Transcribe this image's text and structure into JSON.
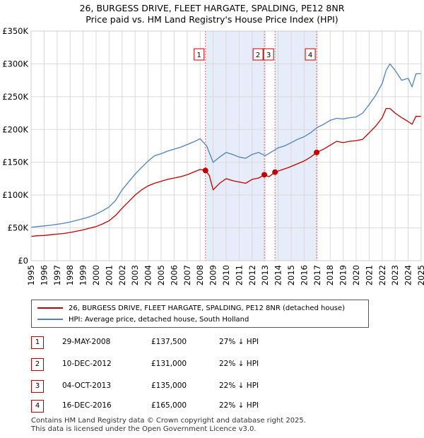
{
  "title_line1": "26, BURGESS DRIVE, FLEET HARGATE, SPALDING, PE12 8NR",
  "title_line2": "Price paid vs. HM Land Registry's House Price Index (HPI)",
  "colors": {
    "price_paid": "#c00000",
    "hpi": "#4f81bd",
    "shade": "#dde6f7",
    "vline": "#e06060"
  },
  "legend": {
    "price_paid_label": "26, BURGESS DRIVE, FLEET HARGATE, SPALDING, PE12 8NR (detached house)",
    "hpi_label": "HPI: Average price, detached house, South Holland"
  },
  "sales": [
    {
      "num": "1",
      "date": "29-MAY-2008",
      "price": "£137,500",
      "hpi": "27% ↓ HPI"
    },
    {
      "num": "2",
      "date": "10-DEC-2012",
      "price": "£131,000",
      "hpi": "22% ↓ HPI"
    },
    {
      "num": "3",
      "date": "04-OCT-2013",
      "price": "£135,000",
      "hpi": "22% ↓ HPI"
    },
    {
      "num": "4",
      "date": "16-DEC-2016",
      "price": "£165,000",
      "hpi": "22% ↓ HPI"
    }
  ],
  "footer_line1": "Contains HM Land Registry data © Crown copyright and database right 2025.",
  "footer_line2": "This data is licensed under the Open Government Licence v3.0.",
  "chart_data": {
    "type": "line",
    "xlim": [
      1995,
      2025
    ],
    "ylim": [
      0,
      350000
    ],
    "y_ticks": [
      0,
      50000,
      100000,
      150000,
      200000,
      250000,
      300000,
      350000
    ],
    "y_tick_labels": [
      "£0",
      "£50K",
      "£100K",
      "£150K",
      "£200K",
      "£250K",
      "£300K",
      "£350K"
    ],
    "x_ticks": [
      1995,
      1996,
      1997,
      1998,
      1999,
      2000,
      2001,
      2002,
      2003,
      2004,
      2005,
      2006,
      2007,
      2008,
      2009,
      2010,
      2011,
      2012,
      2013,
      2014,
      2015,
      2016,
      2017,
      2018,
      2019,
      2020,
      2021,
      2022,
      2023,
      2024,
      2025
    ],
    "shaded_ranges": [
      [
        2008.41,
        2012.94
      ],
      [
        2013.76,
        2016.96
      ]
    ],
    "sale_markers": [
      {
        "label": "1",
        "x": 2008.41,
        "y": 137500
      },
      {
        "label": "2",
        "x": 2012.94,
        "y": 131000
      },
      {
        "label": "3",
        "x": 2013.76,
        "y": 135000
      },
      {
        "label": "4",
        "x": 2016.96,
        "y": 165000
      }
    ],
    "series": [
      {
        "name": "HPI: Average price, detached house, South Holland",
        "x": [
          1995,
          1995.5,
          1996,
          1996.5,
          1997,
          1997.5,
          1998,
          1998.5,
          1999,
          1999.5,
          2000,
          2000.5,
          2001,
          2001.5,
          2002,
          2002.5,
          2003,
          2003.5,
          2004,
          2004.5,
          2005,
          2005.5,
          2006,
          2006.5,
          2007,
          2007.5,
          2008,
          2008.5,
          2009,
          2009.5,
          2010,
          2010.5,
          2011,
          2011.5,
          2012,
          2012.5,
          2013,
          2013.5,
          2014,
          2014.5,
          2015,
          2015.5,
          2016,
          2016.5,
          2017,
          2017.5,
          2018,
          2018.5,
          2019,
          2019.5,
          2020,
          2020.5,
          2021,
          2021.5,
          2022,
          2022.3,
          2022.6,
          2023,
          2023.5,
          2024,
          2024.3,
          2024.6,
          2025
        ],
        "y": [
          51000,
          52000,
          53000,
          54000,
          55500,
          57000,
          59000,
          61500,
          64000,
          67000,
          71000,
          76000,
          82000,
          92000,
          108000,
          120000,
          132000,
          142000,
          152000,
          160000,
          163000,
          167000,
          170000,
          173000,
          177000,
          181000,
          186000,
          175000,
          150000,
          158000,
          165000,
          162000,
          158000,
          156000,
          162000,
          165000,
          160000,
          166000,
          172000,
          175000,
          180000,
          185000,
          189000,
          195000,
          203000,
          208000,
          214000,
          217000,
          216000,
          218000,
          219000,
          225000,
          238000,
          252000,
          270000,
          290000,
          300000,
          290000,
          275000,
          278000,
          265000,
          285000,
          285000
        ]
      },
      {
        "name": "26, BURGESS DRIVE, FLEET HARGATE, SPALDING, PE12 8NR (detached house)",
        "x": [
          1995,
          1995.5,
          1996,
          1996.5,
          1997,
          1997.5,
          1998,
          1998.5,
          1999,
          1999.5,
          2000,
          2000.5,
          2001,
          2001.5,
          2002,
          2002.5,
          2003,
          2003.5,
          2004,
          2004.5,
          2005,
          2005.5,
          2006,
          2006.5,
          2007,
          2007.5,
          2008,
          2008.41,
          2008.7,
          2009,
          2009.5,
          2010,
          2010.5,
          2011,
          2011.5,
          2012,
          2012.5,
          2012.94,
          2013.3,
          2013.76,
          2014.2,
          2014.8,
          2015.4,
          2016,
          2016.5,
          2016.96,
          2017.5,
          2018,
          2018.5,
          2019,
          2019.5,
          2020,
          2020.5,
          2021,
          2021.5,
          2022,
          2022.3,
          2022.6,
          2023,
          2023.5,
          2024,
          2024.3,
          2024.6,
          2025
        ],
        "y": [
          37000,
          38000,
          38500,
          39500,
          40500,
          41500,
          43000,
          45000,
          47000,
          49500,
          52000,
          56000,
          61000,
          69000,
          80000,
          90000,
          100000,
          108000,
          114000,
          118000,
          121000,
          124000,
          126000,
          128000,
          131000,
          135000,
          139000,
          137500,
          130000,
          108000,
          118000,
          125000,
          122000,
          120000,
          118000,
          124000,
          126000,
          131000,
          128000,
          135000,
          138000,
          142000,
          147000,
          152000,
          158000,
          165000,
          170000,
          176000,
          182000,
          180000,
          182000,
          183000,
          185000,
          195000,
          205000,
          218000,
          232000,
          232000,
          225000,
          218000,
          212000,
          208000,
          220000,
          220000
        ]
      }
    ]
  }
}
